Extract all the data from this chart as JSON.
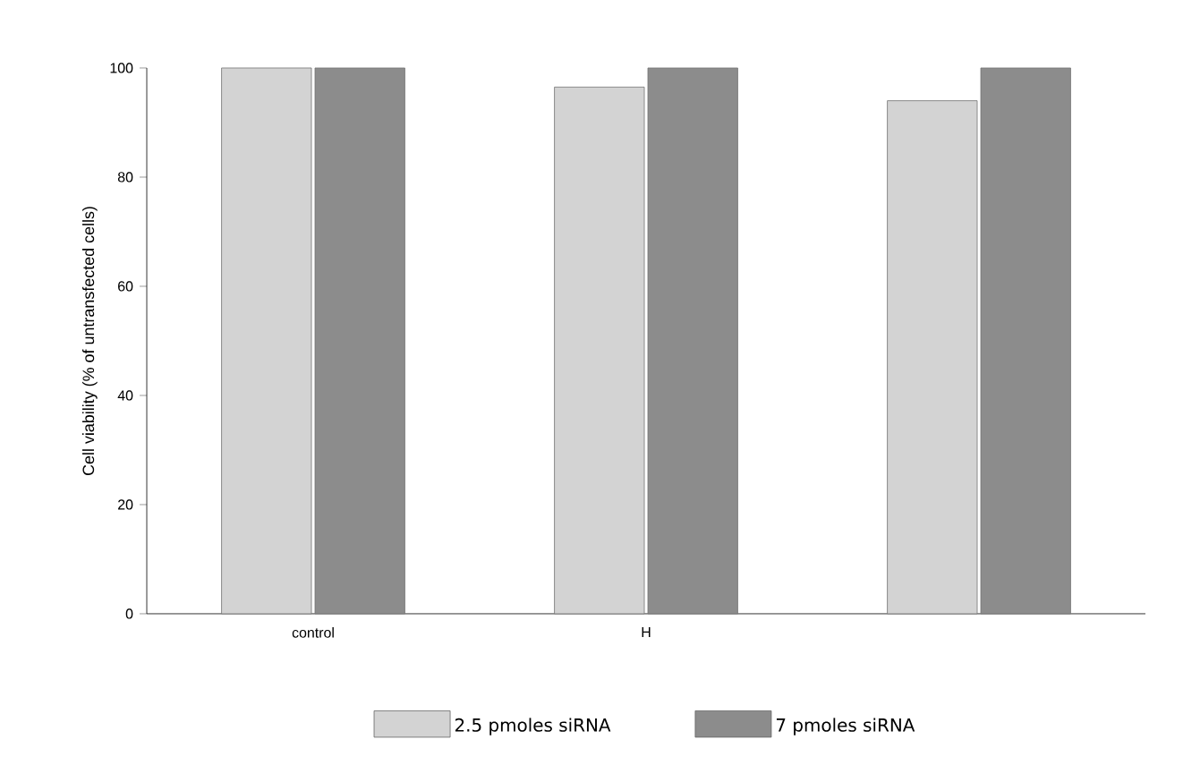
{
  "chart_data": {
    "type": "bar",
    "ylabel": "Cell viability (% of untransfected cells)",
    "categories": [
      "control",
      "H",
      null
    ],
    "series": [
      {
        "name": "2.5 pmoles siRNA",
        "color": "#d3d3d3",
        "values": [
          100,
          96.5,
          94
        ]
      },
      {
        "name": "7 pmoles siRNA",
        "color": "#8c8c8c",
        "values": [
          100,
          100,
          100
        ]
      }
    ],
    "ylim": [
      0,
      100
    ],
    "yticks": [
      0,
      20,
      40,
      60,
      80,
      100
    ],
    "legend": "bottom"
  }
}
